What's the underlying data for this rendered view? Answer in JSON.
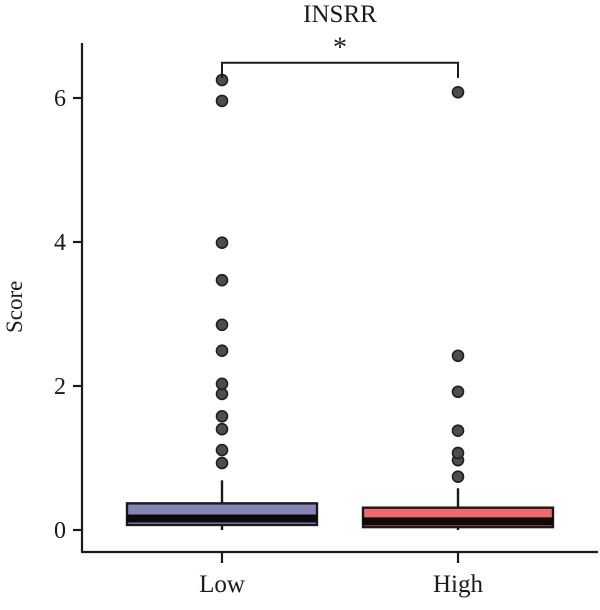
{
  "chart_data": {
    "type": "boxplot",
    "title": "INSRR",
    "ylabel": "Score",
    "xlabel": "",
    "categories": [
      "Low",
      "High"
    ],
    "yticks": [
      0,
      2,
      4,
      6
    ],
    "ylim": [
      -0.31,
      6.76
    ],
    "grid": false,
    "legend": "none",
    "groups": [
      {
        "name": "Low",
        "box_color": "#8784b8",
        "q1": 0.07,
        "median": 0.16,
        "q3": 0.37,
        "whisker_low": 0.0,
        "whisker_high": 0.69,
        "outliers": [
          0.93,
          1.11,
          1.4,
          1.58,
          1.89,
          2.03,
          2.49,
          2.85,
          3.47,
          3.99,
          5.96,
          6.25
        ]
      },
      {
        "name": "High",
        "box_color": "#f0696a",
        "q1": 0.04,
        "median": 0.12,
        "q3": 0.31,
        "whisker_low": 0.0,
        "whisker_high": 0.58,
        "outliers": [
          0.74,
          0.97,
          1.07,
          1.38,
          1.92,
          2.42,
          6.08
        ]
      }
    ],
    "significance": {
      "label": "*",
      "bar_y": 6.49,
      "tick_drop": 0.21
    },
    "colors": {
      "axis": "#1a1a1a",
      "median": "#0a0a0a",
      "outlier_fill": "#4d4d4d",
      "outlier_stroke": "#1f1f1f",
      "box_border": "#1a1a1a"
    }
  }
}
